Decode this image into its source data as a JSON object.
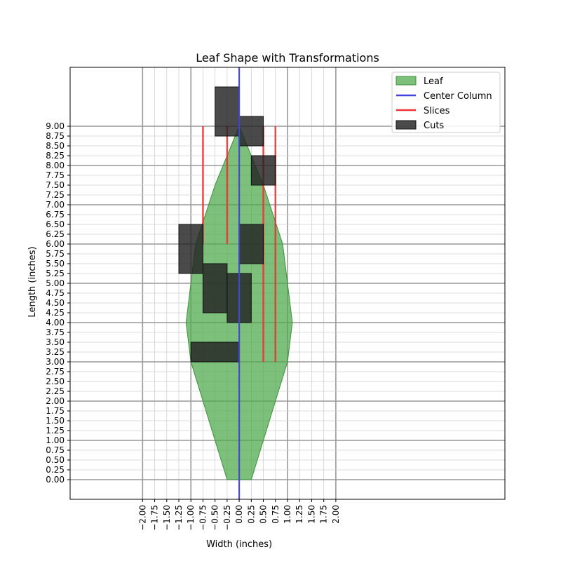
{
  "chart_data": {
    "type": "area",
    "title": "Leaf Shape with Transformations",
    "xlabel": "Width (inches)",
    "ylabel": "Length (inches)",
    "xlim": [
      -3.5,
      5.5
    ],
    "ylim": [
      -0.5,
      10.5
    ],
    "xticks": [
      "−2.00",
      "−1.75",
      "−1.50",
      "−1.25",
      "−1.00",
      "−0.75",
      "−0.50",
      "−0.25",
      "0.00",
      "0.25",
      "0.50",
      "0.75",
      "1.00",
      "1.25",
      "1.50",
      "1.75",
      "2.00"
    ],
    "xtick_values": [
      -2.0,
      -1.75,
      -1.5,
      -1.25,
      -1.0,
      -0.75,
      -0.5,
      -0.25,
      0.0,
      0.25,
      0.5,
      0.75,
      1.0,
      1.25,
      1.5,
      1.75,
      2.0
    ],
    "yticks": [
      "0.00",
      "0.25",
      "0.50",
      "0.75",
      "1.00",
      "1.25",
      "1.50",
      "1.75",
      "2.00",
      "2.25",
      "2.50",
      "2.75",
      "3.00",
      "3.25",
      "3.50",
      "3.75",
      "4.00",
      "4.25",
      "4.50",
      "4.75",
      "5.00",
      "5.25",
      "5.50",
      "5.75",
      "6.00",
      "6.25",
      "6.50",
      "6.75",
      "7.00",
      "7.25",
      "7.50",
      "7.75",
      "8.00",
      "8.25",
      "8.50",
      "8.75",
      "9.00"
    ],
    "ytick_values": [
      0,
      0.25,
      0.5,
      0.75,
      1.0,
      1.25,
      1.5,
      1.75,
      2.0,
      2.25,
      2.5,
      2.75,
      3.0,
      3.25,
      3.5,
      3.75,
      4.0,
      4.25,
      4.5,
      4.75,
      5.0,
      5.25,
      5.5,
      5.75,
      6.0,
      6.25,
      6.5,
      6.75,
      7.0,
      7.25,
      7.5,
      7.75,
      8.0,
      8.25,
      8.5,
      8.75,
      9.0
    ],
    "grid": {
      "major_step": 1.0,
      "minor_step": 0.25
    },
    "legend_position": "top-right",
    "legend": [
      "Leaf",
      "Center Column",
      "Slices",
      "Cuts"
    ],
    "series": [
      {
        "name": "Leaf",
        "kind": "polygon",
        "color": "#4aa84a",
        "points": [
          [
            -0.25,
            0
          ],
          [
            0.25,
            0
          ],
          [
            0.5,
            1.0
          ],
          [
            0.75,
            2.0
          ],
          [
            1.0,
            3.0
          ],
          [
            1.1,
            4.0
          ],
          [
            0.9,
            6.0
          ],
          [
            0.5,
            7.5
          ],
          [
            0,
            9.0
          ],
          [
            -0.5,
            7.5
          ],
          [
            -0.9,
            6.0
          ],
          [
            -1.1,
            4.0
          ],
          [
            -1.0,
            3.0
          ],
          [
            -0.75,
            2.0
          ],
          [
            -0.5,
            1.0
          ]
        ]
      },
      {
        "name": "Center Column",
        "kind": "line",
        "color": "#4444dd",
        "x": 0.0,
        "y_range": [
          -0.5,
          10.5
        ]
      },
      {
        "name": "Slices",
        "kind": "segments",
        "color": "#ee3333",
        "segments": [
          {
            "x": -0.75,
            "y": [
              6.0,
              9.0
            ]
          },
          {
            "x": -0.25,
            "y": [
              6.0,
              9.0
            ]
          },
          {
            "x": 0.5,
            "y": [
              3.0,
              9.0
            ]
          },
          {
            "x": 0.75,
            "y": [
              3.0,
              9.0
            ]
          }
        ]
      },
      {
        "name": "Cuts",
        "kind": "rectangles",
        "color": "#222222",
        "rects": [
          {
            "x": [
              -0.5,
              0.0
            ],
            "y": [
              8.75,
              10.0
            ]
          },
          {
            "x": [
              0.0,
              0.5
            ],
            "y": [
              8.5,
              9.25
            ]
          },
          {
            "x": [
              0.25,
              0.75
            ],
            "y": [
              7.5,
              8.25
            ]
          },
          {
            "x": [
              -1.25,
              -0.75
            ],
            "y": [
              5.25,
              6.5
            ]
          },
          {
            "x": [
              0.0,
              0.5
            ],
            "y": [
              5.5,
              6.5
            ]
          },
          {
            "x": [
              -0.75,
              -0.25
            ],
            "y": [
              4.25,
              5.5
            ]
          },
          {
            "x": [
              -0.25,
              0.25
            ],
            "y": [
              4.0,
              5.25
            ]
          },
          {
            "x": [
              -1.0,
              0.0
            ],
            "y": [
              3.0,
              3.5
            ]
          }
        ]
      }
    ]
  }
}
